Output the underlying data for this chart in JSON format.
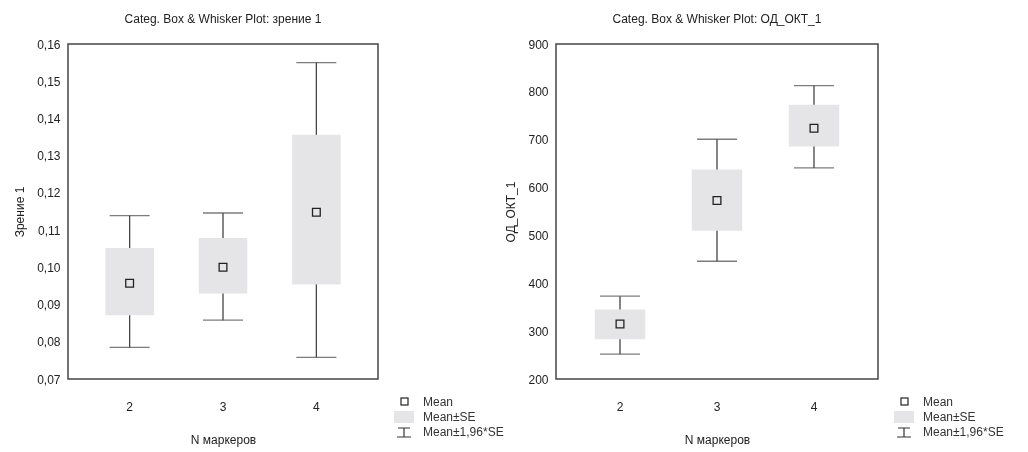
{
  "chart_data": [
    {
      "type": "box",
      "title": "Categ. Box & Whisker Plot: зрение 1",
      "xlabel": "N маркеров",
      "ylabel": "Зрение 1",
      "categories": [
        "2",
        "3",
        "4"
      ],
      "marker": "square",
      "boxes": [
        {
          "low": 0.0785,
          "q1": 0.0871,
          "q3": 0.1052,
          "high": 0.1139,
          "mean": 0.0957
        },
        {
          "low": 0.0858,
          "q1": 0.093,
          "q3": 0.1079,
          "high": 0.1146,
          "mean": 0.1
        },
        {
          "low": 0.0758,
          "q1": 0.0954,
          "q3": 0.1356,
          "high": 0.155,
          "mean": 0.1148
        }
      ],
      "ylim": [
        0.07,
        0.16
      ],
      "yticks": [
        {
          "value": 0.07,
          "label": "0,07"
        },
        {
          "value": 0.08,
          "label": "0,08"
        },
        {
          "value": 0.09,
          "label": "0,09"
        },
        {
          "value": 0.1,
          "label": "0,10"
        },
        {
          "value": 0.11,
          "label": "0,11"
        },
        {
          "value": 0.12,
          "label": "0,12"
        },
        {
          "value": 0.13,
          "label": "0,13"
        },
        {
          "value": 0.14,
          "label": "0,14"
        },
        {
          "value": 0.15,
          "label": "0,15"
        },
        {
          "value": 0.16,
          "label": "0,16"
        }
      ],
      "annotations": [
        "Mean",
        "Mean±SE",
        "Mean±1,96*SE"
      ]
    },
    {
      "type": "box",
      "title": "Categ. Box & Whisker Plot: ОД_ОКТ_1",
      "xlabel": "N маркеров",
      "ylabel": "ОД_ОКТ_1",
      "categories": [
        "2",
        "3",
        "4"
      ],
      "marker": "square",
      "boxes": [
        {
          "low": 252,
          "q1": 283,
          "q3": 345,
          "high": 373,
          "mean": 315
        },
        {
          "low": 446,
          "q1": 510,
          "q3": 638,
          "high": 701,
          "mean": 573
        },
        {
          "low": 641,
          "q1": 686,
          "q3": 773,
          "high": 813,
          "mean": 724
        }
      ],
      "ylim": [
        200,
        900
      ],
      "yticks": [
        200,
        300,
        400,
        500,
        600,
        700,
        800,
        900
      ],
      "annotations": [
        "Mean",
        "Mean±SE",
        "Mean±1,96*SE"
      ]
    }
  ]
}
